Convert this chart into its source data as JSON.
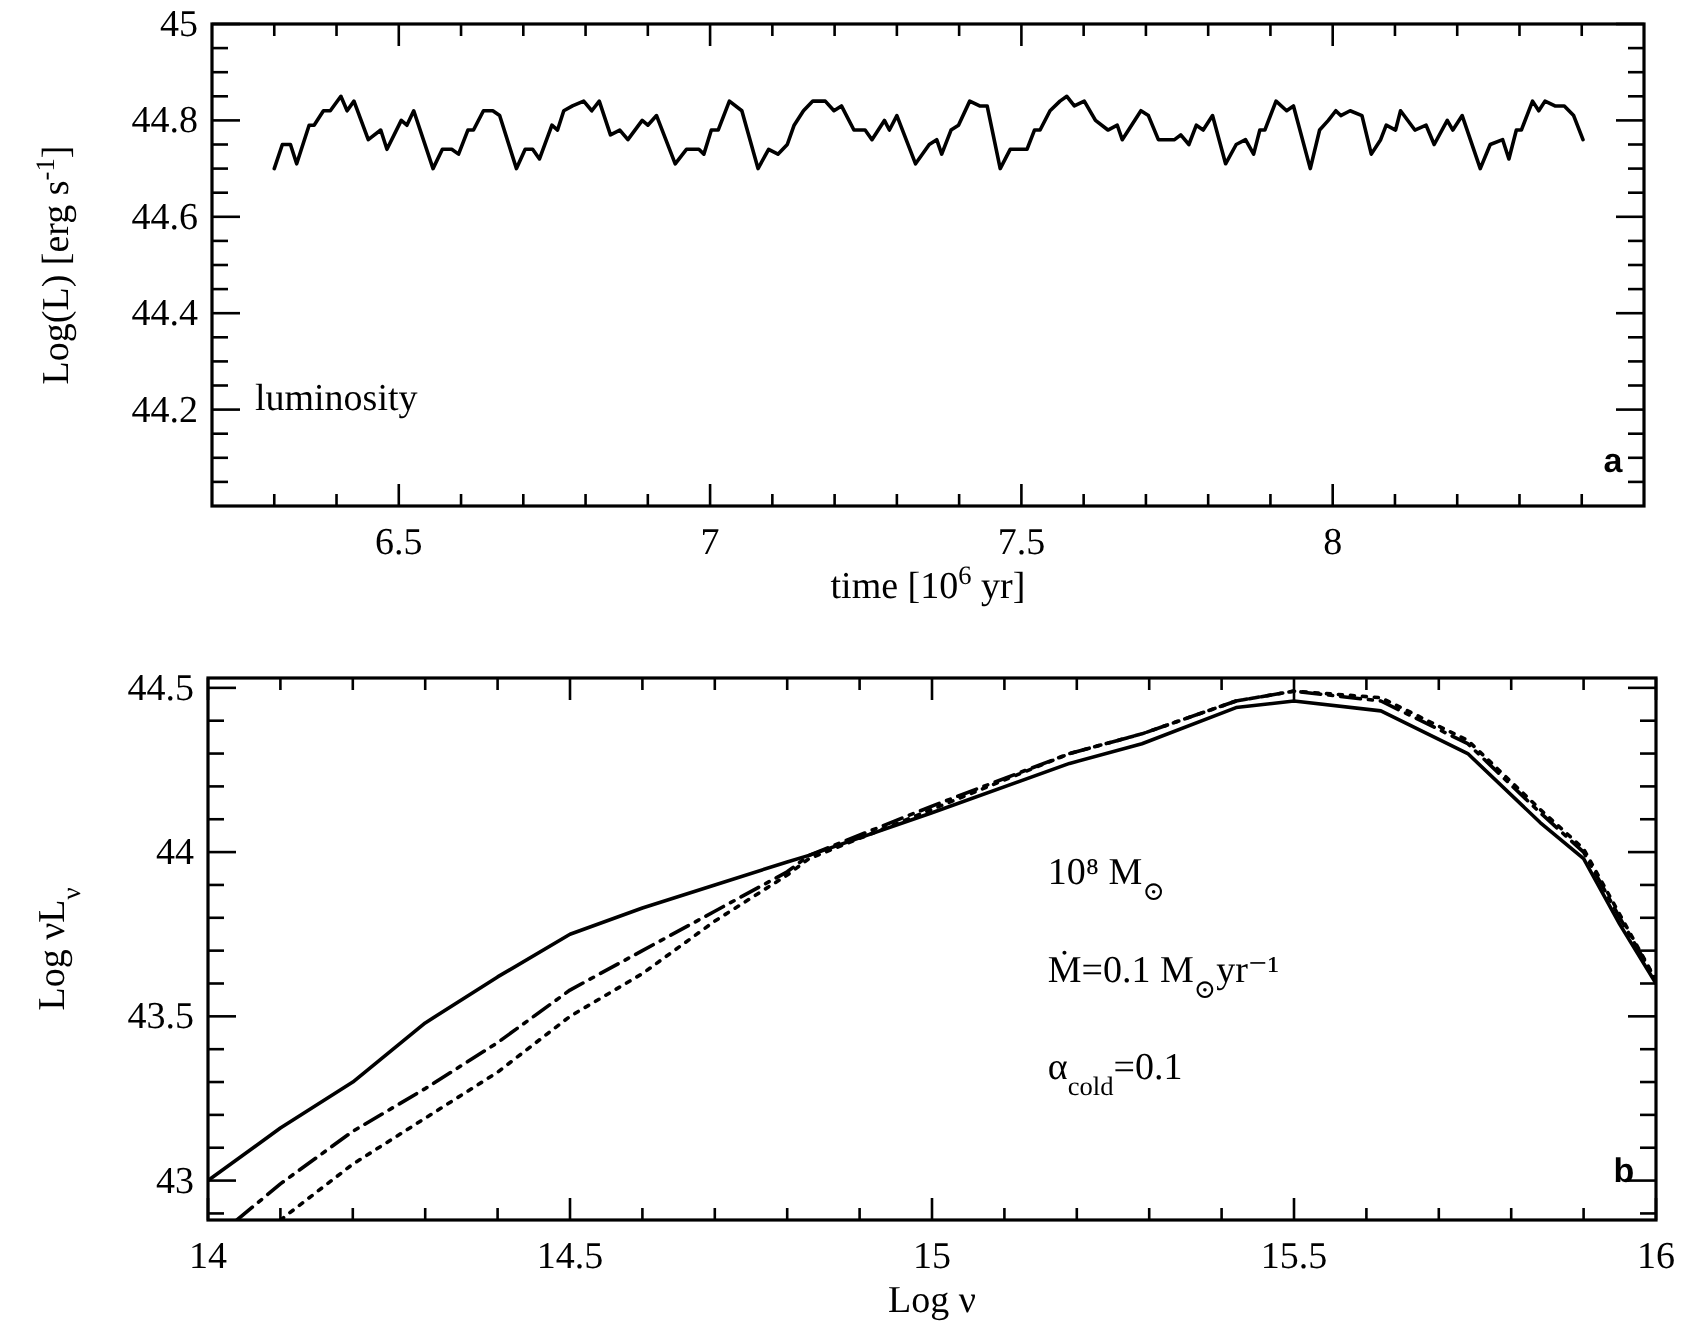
{
  "chart_data": [
    {
      "type": "line",
      "xlabel": "time [10$^{6}$ yr]",
      "ylabel": "Log(L) [erg s$^{-1}$]",
      "xlim": [
        6.2,
        8.5
      ],
      "ylim": [
        44,
        45
      ],
      "xticks": [
        {
          "value": 6.3,
          "label": null
        },
        {
          "value": 6.4,
          "label": null
        },
        6.5,
        {
          "value": 6.6,
          "label": null
        },
        {
          "value": 6.7,
          "label": null
        },
        {
          "value": 6.8,
          "label": null
        },
        {
          "value": 6.9,
          "label": null
        },
        7,
        {
          "value": 7.1,
          "label": null
        },
        {
          "value": 7.2,
          "label": null
        },
        {
          "value": 7.3,
          "label": null
        },
        {
          "value": 7.4,
          "label": null
        },
        7.5,
        {
          "value": 7.6,
          "label": null
        },
        {
          "value": 7.7,
          "label": null
        },
        {
          "value": 7.8,
          "label": null
        },
        {
          "value": 7.9,
          "label": null
        },
        8,
        {
          "value": 8.1,
          "label": null
        },
        {
          "value": 8.2,
          "label": null
        },
        {
          "value": 8.3,
          "label": null
        },
        {
          "value": 8.4,
          "label": null
        }
      ],
      "yticks": [
        {
          "value": 44.05,
          "label": null
        },
        {
          "value": 44.1,
          "label": null
        },
        {
          "value": 44.15,
          "label": null
        },
        44.2,
        {
          "value": 44.25,
          "label": null
        },
        {
          "value": 44.3,
          "label": null
        },
        {
          "value": 44.35,
          "label": null
        },
        44.4,
        {
          "value": 44.45,
          "label": null
        },
        {
          "value": 44.5,
          "label": null
        },
        {
          "value": 44.55,
          "label": null
        },
        44.6,
        {
          "value": 44.65,
          "label": null
        },
        {
          "value": 44.7,
          "label": null
        },
        {
          "value": 44.75,
          "label": null
        },
        44.8,
        {
          "value": 44.85,
          "label": null
        },
        {
          "value": 44.9,
          "label": null
        },
        {
          "value": 44.95,
          "label": null
        },
        45
      ],
      "annotations": [
        "luminosity",
        "a"
      ],
      "series": [
        {
          "color": "#000000",
          "line_style": "solid",
          "x": [
            6.3,
            6.313,
            6.326,
            6.336,
            6.356,
            6.364,
            6.379,
            6.39,
            6.407,
            6.417,
            6.428,
            6.451,
            6.471,
            6.481,
            6.504,
            6.513,
            6.524,
            6.555,
            6.57,
            6.585,
            6.596,
            6.611,
            6.62,
            6.636,
            6.651,
            6.662,
            6.689,
            6.703,
            6.715,
            6.726,
            6.746,
            6.755,
            6.765,
            6.779,
            6.797,
            6.81,
            6.822,
            6.84,
            6.855,
            6.868,
            6.891,
            6.9,
            6.914,
            6.944,
            6.962,
            6.982,
            6.99,
            7.002,
            7.013,
            7.031,
            7.051,
            7.077,
            7.094,
            7.109,
            7.124,
            7.135,
            7.15,
            7.165,
            7.185,
            7.199,
            7.211,
            7.231,
            7.249,
            7.26,
            7.28,
            7.288,
            7.3,
            7.33,
            7.352,
            7.364,
            7.372,
            7.387,
            7.399,
            7.417,
            7.433,
            7.445,
            7.466,
            7.482,
            7.501,
            7.509,
            7.521,
            7.53,
            7.546,
            7.562,
            7.573,
            7.585,
            7.601,
            7.619,
            7.639,
            7.654,
            7.662,
            7.677,
            7.692,
            7.704,
            7.72,
            7.746,
            7.756,
            7.769,
            7.781,
            7.792,
            7.807,
            7.828,
            7.845,
            7.86,
            7.873,
            7.883,
            7.891,
            7.909,
            7.926,
            7.937,
            7.964,
            7.979,
            7.993,
            8.005,
            8.013,
            8.028,
            8.047,
            8.062,
            8.077,
            8.086,
            8.101,
            8.109,
            8.132,
            8.15,
            8.163,
            8.184,
            8.193,
            8.208,
            8.237,
            8.253,
            8.273,
            8.283,
            8.295,
            8.303,
            8.321,
            8.331,
            8.341,
            8.357,
            8.372,
            8.387,
            8.402
          ],
          "values": [
            44.7,
            44.75,
            44.75,
            44.71,
            44.79,
            44.79,
            44.82,
            44.82,
            44.85,
            44.82,
            44.84,
            44.76,
            44.78,
            44.74,
            44.8,
            44.79,
            44.82,
            44.7,
            44.74,
            44.74,
            44.73,
            44.78,
            44.78,
            44.82,
            44.82,
            44.81,
            44.7,
            44.74,
            44.74,
            44.72,
            44.79,
            44.78,
            44.82,
            44.83,
            44.84,
            44.82,
            44.84,
            44.77,
            44.78,
            44.76,
            44.8,
            44.79,
            44.81,
            44.71,
            44.74,
            44.74,
            44.73,
            44.78,
            44.78,
            44.84,
            44.82,
            44.7,
            44.74,
            44.73,
            44.75,
            44.79,
            44.82,
            44.84,
            44.84,
            44.82,
            44.83,
            44.78,
            44.78,
            44.76,
            44.8,
            44.78,
            44.81,
            44.71,
            44.75,
            44.76,
            44.73,
            44.78,
            44.79,
            44.84,
            44.83,
            44.83,
            44.7,
            44.74,
            44.74,
            44.74,
            44.78,
            44.78,
            44.82,
            44.84,
            44.85,
            44.83,
            44.84,
            44.8,
            44.78,
            44.79,
            44.76,
            44.79,
            44.82,
            44.81,
            44.76,
            44.76,
            44.77,
            44.75,
            44.79,
            44.78,
            44.81,
            44.71,
            44.75,
            44.76,
            44.73,
            44.78,
            44.78,
            44.84,
            44.82,
            44.83,
            44.7,
            44.78,
            44.8,
            44.82,
            44.81,
            44.82,
            44.81,
            44.73,
            44.76,
            44.79,
            44.78,
            44.82,
            44.78,
            44.79,
            44.75,
            44.8,
            44.78,
            44.81,
            44.7,
            44.75,
            44.76,
            44.72,
            44.78,
            44.78,
            44.84,
            44.82,
            44.84,
            44.83,
            44.83,
            44.81,
            44.76
          ]
        }
      ]
    },
    {
      "type": "line",
      "xlabel": "Log ν",
      "ylabel": "Log νL$_{ν}$",
      "xlim": [
        14,
        16
      ],
      "ylim": [
        42.88,
        44.53
      ],
      "xticks": [
        14,
        {
          "value": 14.1,
          "label": null
        },
        {
          "value": 14.2,
          "label": null
        },
        {
          "value": 14.3,
          "label": null
        },
        {
          "value": 14.4,
          "label": null
        },
        14.5,
        {
          "value": 14.6,
          "label": null
        },
        {
          "value": 14.7,
          "label": null
        },
        {
          "value": 14.8,
          "label": null
        },
        {
          "value": 14.9,
          "label": null
        },
        15,
        {
          "value": 15.1,
          "label": null
        },
        {
          "value": 15.2,
          "label": null
        },
        {
          "value": 15.3,
          "label": null
        },
        {
          "value": 15.4,
          "label": null
        },
        15.5,
        {
          "value": 15.6,
          "label": null
        },
        {
          "value": 15.7,
          "label": null
        },
        {
          "value": 15.8,
          "label": null
        },
        {
          "value": 15.9,
          "label": null
        },
        16
      ],
      "yticks": [
        {
          "value": 42.9,
          "label": null
        },
        43,
        {
          "value": 43.1,
          "label": null
        },
        {
          "value": 43.2,
          "label": null
        },
        {
          "value": 43.3,
          "label": null
        },
        {
          "value": 43.4,
          "label": null
        },
        43.5,
        {
          "value": 43.6,
          "label": null
        },
        {
          "value": 43.7,
          "label": null
        },
        {
          "value": 43.8,
          "label": null
        },
        {
          "value": 43.9,
          "label": null
        },
        44,
        {
          "value": 44.1,
          "label": null
        },
        {
          "value": 44.2,
          "label": null
        },
        {
          "value": 44.3,
          "label": null
        },
        {
          "value": 44.4,
          "label": null
        },
        44.5
      ],
      "annotations": [
        "10⁸ M$_{⊙}$",
        "Ṁ=0.1 M$_{⊙}$yr⁻¹",
        "α$_{cold}$=0.1",
        "b"
      ],
      "series": [
        {
          "color": "#000000",
          "line_style": "solid",
          "x": [
            14,
            14.1,
            14.2,
            14.3,
            14.4,
            14.5,
            14.6,
            14.7,
            14.8,
            14.83,
            15,
            15.19,
            15.29,
            15.42,
            15.5,
            15.62,
            15.74,
            15.84,
            15.9,
            15.95,
            16
          ],
          "values": [
            43.0,
            43.16,
            43.3,
            43.48,
            43.62,
            43.75,
            43.83,
            43.9,
            43.97,
            43.99,
            44.12,
            44.27,
            44.33,
            44.44,
            44.46,
            44.43,
            44.3,
            44.09,
            43.98,
            43.78,
            43.6
          ]
        },
        {
          "color": "#000000",
          "line_style": "dashdot",
          "x": [
            14.04,
            14.1,
            14.2,
            14.3,
            14.4,
            14.5,
            14.6,
            14.7,
            14.8,
            14.83,
            15,
            15.19,
            15.29,
            15.42,
            15.5,
            15.62,
            15.74,
            15.84,
            15.9,
            15.95,
            16
          ],
          "values": [
            42.88,
            42.99,
            43.15,
            43.28,
            43.42,
            43.58,
            43.7,
            43.82,
            43.94,
            43.99,
            44.14,
            44.3,
            44.36,
            44.46,
            44.49,
            44.46,
            44.33,
            44.12,
            44.0,
            43.8,
            43.61
          ]
        },
        {
          "color": "#000000",
          "line_style": "dotted",
          "x": [
            14.1,
            14.2,
            14.3,
            14.4,
            14.5,
            14.6,
            14.7,
            14.8,
            14.83,
            15,
            15.19,
            15.29,
            15.42,
            15.5,
            15.62,
            15.74,
            15.84,
            15.9,
            15.95,
            16
          ],
          "values": [
            42.88,
            43.05,
            43.19,
            43.33,
            43.5,
            43.63,
            43.79,
            43.93,
            43.98,
            44.13,
            44.3,
            44.36,
            44.46,
            44.49,
            44.47,
            44.34,
            44.13,
            44.01,
            43.81,
            43.61
          ]
        }
      ]
    }
  ]
}
